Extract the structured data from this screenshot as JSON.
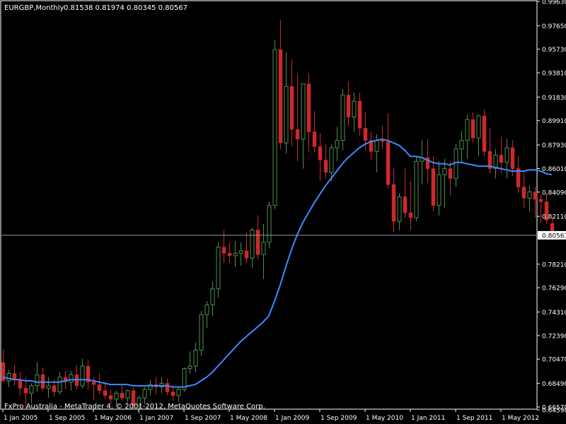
{
  "header": {
    "symbol": "EURGBP,Monthly",
    "ohlc": "0.81538 0.81974 0.80345 0.80567"
  },
  "footer": {
    "copyright": "FxPro Australia - MetaTrader 4, © 2001-2012, MetaQuotes Software Corp."
  },
  "colors": {
    "background": "#000000",
    "frame": "#ffffff",
    "bull": "#4f8f4f",
    "bear": "#cc2a2a",
    "ma_line": "#3a8cff",
    "price_line": "#8c9bb0",
    "price_label_bg": "#ffffff"
  },
  "chart_data": {
    "type": "candlestick",
    "timeframe": "Monthly",
    "current_price": 0.80567,
    "current_price_label": "0.80567",
    "ylim": [
      0.6645,
      0.9963
    ],
    "y_ticks": [
      {
        "value": 0.9963,
        "label": "0.99630"
      },
      {
        "value": 0.9765,
        "label": "0.97650"
      },
      {
        "value": 0.9573,
        "label": "0.95730"
      },
      {
        "value": 0.9381,
        "label": "0.93810"
      },
      {
        "value": 0.9183,
        "label": "0.91830"
      },
      {
        "value": 0.8991,
        "label": "0.89910"
      },
      {
        "value": 0.8793,
        "label": "0.87930"
      },
      {
        "value": 0.8601,
        "label": "0.86010"
      },
      {
        "value": 0.8409,
        "label": "0.84090"
      },
      {
        "value": 0.8211,
        "label": "0.82110"
      },
      {
        "value": 0.7821,
        "label": "0.78210"
      },
      {
        "value": 0.7629,
        "label": "0.76290"
      },
      {
        "value": 0.7431,
        "label": "0.74310"
      },
      {
        "value": 0.7239,
        "label": "0.72390"
      },
      {
        "value": 0.7047,
        "label": "0.70470"
      },
      {
        "value": 0.6849,
        "label": "0.68490"
      },
      {
        "value": 0.6657,
        "label": "0.66570"
      },
      {
        "value": 0.6459,
        "label": "0.64590"
      }
    ],
    "x_labels": [
      {
        "index": 0,
        "label": "1 Jan 2005"
      },
      {
        "index": 8,
        "label": "1 Sep 2005"
      },
      {
        "index": 16,
        "label": "1 May 2006"
      },
      {
        "index": 24,
        "label": "1 Jan 2007"
      },
      {
        "index": 32,
        "label": "1 Sep 2007"
      },
      {
        "index": 40,
        "label": "1 May 2008"
      },
      {
        "index": 48,
        "label": "1 Jan 2009"
      },
      {
        "index": 56,
        "label": "1 Sep 2009"
      },
      {
        "index": 64,
        "label": "1 May 2010"
      },
      {
        "index": 72,
        "label": "1 Jan 2011"
      },
      {
        "index": 80,
        "label": "1 Sep 2011"
      },
      {
        "index": 88,
        "label": "1 May 2012"
      }
    ],
    "candles": [
      {
        "month": "2005-01",
        "o": 0.702,
        "h": 0.713,
        "l": 0.686,
        "c": 0.687
      },
      {
        "month": "2005-02",
        "o": 0.687,
        "h": 0.696,
        "l": 0.682,
        "c": 0.693
      },
      {
        "month": "2005-03",
        "o": 0.693,
        "h": 0.7,
        "l": 0.683,
        "c": 0.688
      },
      {
        "month": "2005-04",
        "o": 0.688,
        "h": 0.694,
        "l": 0.675,
        "c": 0.681
      },
      {
        "month": "2005-05",
        "o": 0.681,
        "h": 0.69,
        "l": 0.663,
        "c": 0.677
      },
      {
        "month": "2005-06",
        "o": 0.677,
        "h": 0.685,
        "l": 0.669,
        "c": 0.683
      },
      {
        "month": "2005-07",
        "o": 0.683,
        "h": 0.702,
        "l": 0.678,
        "c": 0.692
      },
      {
        "month": "2005-08",
        "o": 0.692,
        "h": 0.698,
        "l": 0.678,
        "c": 0.681
      },
      {
        "month": "2005-09",
        "o": 0.681,
        "h": 0.69,
        "l": 0.673,
        "c": 0.683
      },
      {
        "month": "2005-10",
        "o": 0.683,
        "h": 0.688,
        "l": 0.674,
        "c": 0.678
      },
      {
        "month": "2005-11",
        "o": 0.678,
        "h": 0.694,
        "l": 0.676,
        "c": 0.69
      },
      {
        "month": "2005-12",
        "o": 0.69,
        "h": 0.695,
        "l": 0.68,
        "c": 0.686
      },
      {
        "month": "2006-01",
        "o": 0.686,
        "h": 0.695,
        "l": 0.679,
        "c": 0.692
      },
      {
        "month": "2006-02",
        "o": 0.692,
        "h": 0.7,
        "l": 0.68,
        "c": 0.683
      },
      {
        "month": "2006-03",
        "o": 0.683,
        "h": 0.705,
        "l": 0.681,
        "c": 0.699
      },
      {
        "month": "2006-04",
        "o": 0.699,
        "h": 0.704,
        "l": 0.68,
        "c": 0.686
      },
      {
        "month": "2006-05",
        "o": 0.686,
        "h": 0.69,
        "l": 0.671,
        "c": 0.684
      },
      {
        "month": "2006-06",
        "o": 0.684,
        "h": 0.693,
        "l": 0.676,
        "c": 0.679
      },
      {
        "month": "2006-07",
        "o": 0.679,
        "h": 0.686,
        "l": 0.672,
        "c": 0.675
      },
      {
        "month": "2006-08",
        "o": 0.675,
        "h": 0.68,
        "l": 0.668,
        "c": 0.672
      },
      {
        "month": "2006-09",
        "o": 0.672,
        "h": 0.679,
        "l": 0.667,
        "c": 0.677
      },
      {
        "month": "2006-10",
        "o": 0.677,
        "h": 0.683,
        "l": 0.671,
        "c": 0.673
      },
      {
        "month": "2006-11",
        "o": 0.673,
        "h": 0.68,
        "l": 0.669,
        "c": 0.679
      },
      {
        "month": "2006-12",
        "o": 0.679,
        "h": 0.682,
        "l": 0.664,
        "c": 0.667
      },
      {
        "month": "2007-01",
        "o": 0.667,
        "h": 0.675,
        "l": 0.66,
        "c": 0.673
      },
      {
        "month": "2007-02",
        "o": 0.673,
        "h": 0.682,
        "l": 0.668,
        "c": 0.68
      },
      {
        "month": "2007-03",
        "o": 0.68,
        "h": 0.688,
        "l": 0.675,
        "c": 0.684
      },
      {
        "month": "2007-04",
        "o": 0.684,
        "h": 0.69,
        "l": 0.676,
        "c": 0.682
      },
      {
        "month": "2007-05",
        "o": 0.682,
        "h": 0.69,
        "l": 0.677,
        "c": 0.685
      },
      {
        "month": "2007-06",
        "o": 0.685,
        "h": 0.689,
        "l": 0.675,
        "c": 0.678
      },
      {
        "month": "2007-07",
        "o": 0.678,
        "h": 0.683,
        "l": 0.671,
        "c": 0.675
      },
      {
        "month": "2007-08",
        "o": 0.675,
        "h": 0.682,
        "l": 0.67,
        "c": 0.68
      },
      {
        "month": "2007-09",
        "o": 0.68,
        "h": 0.698,
        "l": 0.678,
        "c": 0.697
      },
      {
        "month": "2007-10",
        "o": 0.697,
        "h": 0.711,
        "l": 0.693,
        "c": 0.699
      },
      {
        "month": "2007-11",
        "o": 0.699,
        "h": 0.718,
        "l": 0.694,
        "c": 0.712
      },
      {
        "month": "2007-12",
        "o": 0.712,
        "h": 0.744,
        "l": 0.707,
        "c": 0.741
      },
      {
        "month": "2008-01",
        "o": 0.741,
        "h": 0.752,
        "l": 0.73,
        "c": 0.749
      },
      {
        "month": "2008-02",
        "o": 0.749,
        "h": 0.768,
        "l": 0.74,
        "c": 0.762
      },
      {
        "month": "2008-03",
        "o": 0.762,
        "h": 0.8,
        "l": 0.755,
        "c": 0.796
      },
      {
        "month": "2008-04",
        "o": 0.796,
        "h": 0.81,
        "l": 0.783,
        "c": 0.791
      },
      {
        "month": "2008-05",
        "o": 0.791,
        "h": 0.8,
        "l": 0.783,
        "c": 0.789
      },
      {
        "month": "2008-06",
        "o": 0.789,
        "h": 0.801,
        "l": 0.78,
        "c": 0.791
      },
      {
        "month": "2008-07",
        "o": 0.791,
        "h": 0.8,
        "l": 0.781,
        "c": 0.793
      },
      {
        "month": "2008-08",
        "o": 0.793,
        "h": 0.808,
        "l": 0.783,
        "c": 0.787
      },
      {
        "month": "2008-09",
        "o": 0.787,
        "h": 0.812,
        "l": 0.779,
        "c": 0.81
      },
      {
        "month": "2008-10",
        "o": 0.81,
        "h": 0.822,
        "l": 0.786,
        "c": 0.79
      },
      {
        "month": "2008-11",
        "o": 0.79,
        "h": 0.815,
        "l": 0.77,
        "c": 0.8
      },
      {
        "month": "2008-12",
        "o": 0.8,
        "h": 0.833,
        "l": 0.795,
        "c": 0.83
      },
      {
        "month": "2009-01",
        "o": 0.83,
        "h": 0.965,
        "l": 0.827,
        "c": 0.957
      },
      {
        "month": "2009-02",
        "o": 0.957,
        "h": 0.981,
        "l": 0.876,
        "c": 0.881
      },
      {
        "month": "2009-03",
        "o": 0.881,
        "h": 0.955,
        "l": 0.872,
        "c": 0.927
      },
      {
        "month": "2009-04",
        "o": 0.927,
        "h": 0.949,
        "l": 0.878,
        "c": 0.892
      },
      {
        "month": "2009-05",
        "o": 0.892,
        "h": 0.937,
        "l": 0.866,
        "c": 0.884
      },
      {
        "month": "2009-06",
        "o": 0.884,
        "h": 0.928,
        "l": 0.86,
        "c": 0.929
      },
      {
        "month": "2009-07",
        "o": 0.929,
        "h": 0.938,
        "l": 0.874,
        "c": 0.89
      },
      {
        "month": "2009-08",
        "o": 0.89,
        "h": 0.907,
        "l": 0.873,
        "c": 0.878
      },
      {
        "month": "2009-09",
        "o": 0.878,
        "h": 0.889,
        "l": 0.85,
        "c": 0.867
      },
      {
        "month": "2009-10",
        "o": 0.867,
        "h": 0.88,
        "l": 0.852,
        "c": 0.857
      },
      {
        "month": "2009-11",
        "o": 0.857,
        "h": 0.88,
        "l": 0.85,
        "c": 0.877
      },
      {
        "month": "2009-12",
        "o": 0.877,
        "h": 0.894,
        "l": 0.866,
        "c": 0.883
      },
      {
        "month": "2010-01",
        "o": 0.883,
        "h": 0.925,
        "l": 0.875,
        "c": 0.92
      },
      {
        "month": "2010-02",
        "o": 0.92,
        "h": 0.931,
        "l": 0.895,
        "c": 0.902
      },
      {
        "month": "2010-03",
        "o": 0.902,
        "h": 0.922,
        "l": 0.89,
        "c": 0.915
      },
      {
        "month": "2010-04",
        "o": 0.915,
        "h": 0.922,
        "l": 0.887,
        "c": 0.893
      },
      {
        "month": "2010-05",
        "o": 0.893,
        "h": 0.906,
        "l": 0.875,
        "c": 0.883
      },
      {
        "month": "2010-06",
        "o": 0.883,
        "h": 0.89,
        "l": 0.867,
        "c": 0.874
      },
      {
        "month": "2010-07",
        "o": 0.874,
        "h": 0.888,
        "l": 0.857,
        "c": 0.883
      },
      {
        "month": "2010-08",
        "o": 0.883,
        "h": 0.895,
        "l": 0.876,
        "c": 0.882
      },
      {
        "month": "2010-09",
        "o": 0.882,
        "h": 0.905,
        "l": 0.844,
        "c": 0.847
      },
      {
        "month": "2010-10",
        "o": 0.847,
        "h": 0.86,
        "l": 0.808,
        "c": 0.817
      },
      {
        "month": "2010-11",
        "o": 0.817,
        "h": 0.84,
        "l": 0.81,
        "c": 0.837
      },
      {
        "month": "2010-12",
        "o": 0.837,
        "h": 0.86,
        "l": 0.82,
        "c": 0.824
      },
      {
        "month": "2011-01",
        "o": 0.824,
        "h": 0.85,
        "l": 0.81,
        "c": 0.82
      },
      {
        "month": "2011-02",
        "o": 0.82,
        "h": 0.87,
        "l": 0.817,
        "c": 0.866
      },
      {
        "month": "2011-03",
        "o": 0.866,
        "h": 0.883,
        "l": 0.847,
        "c": 0.869
      },
      {
        "month": "2011-04",
        "o": 0.869,
        "h": 0.884,
        "l": 0.848,
        "c": 0.86
      },
      {
        "month": "2011-05",
        "o": 0.86,
        "h": 0.87,
        "l": 0.825,
        "c": 0.83
      },
      {
        "month": "2011-06",
        "o": 0.83,
        "h": 0.866,
        "l": 0.822,
        "c": 0.855
      },
      {
        "month": "2011-07",
        "o": 0.855,
        "h": 0.868,
        "l": 0.828,
        "c": 0.86
      },
      {
        "month": "2011-08",
        "o": 0.86,
        "h": 0.866,
        "l": 0.838,
        "c": 0.852
      },
      {
        "month": "2011-09",
        "o": 0.852,
        "h": 0.88,
        "l": 0.845,
        "c": 0.876
      },
      {
        "month": "2011-10",
        "o": 0.876,
        "h": 0.891,
        "l": 0.865,
        "c": 0.883
      },
      {
        "month": "2011-11",
        "o": 0.883,
        "h": 0.904,
        "l": 0.868,
        "c": 0.9
      },
      {
        "month": "2011-12",
        "o": 0.9,
        "h": 0.906,
        "l": 0.881,
        "c": 0.885
      },
      {
        "month": "2012-01",
        "o": 0.885,
        "h": 0.904,
        "l": 0.87,
        "c": 0.903
      },
      {
        "month": "2012-02",
        "o": 0.903,
        "h": 0.908,
        "l": 0.87,
        "c": 0.874
      },
      {
        "month": "2012-03",
        "o": 0.874,
        "h": 0.893,
        "l": 0.856,
        "c": 0.86
      },
      {
        "month": "2012-04",
        "o": 0.86,
        "h": 0.876,
        "l": 0.852,
        "c": 0.871
      },
      {
        "month": "2012-05",
        "o": 0.871,
        "h": 0.886,
        "l": 0.856,
        "c": 0.865
      },
      {
        "month": "2012-06",
        "o": 0.865,
        "h": 0.884,
        "l": 0.852,
        "c": 0.877
      },
      {
        "month": "2012-07",
        "o": 0.877,
        "h": 0.883,
        "l": 0.854,
        "c": 0.86
      },
      {
        "month": "2012-08",
        "o": 0.86,
        "h": 0.87,
        "l": 0.84,
        "c": 0.845
      },
      {
        "month": "2012-09",
        "o": 0.845,
        "h": 0.858,
        "l": 0.828,
        "c": 0.836
      },
      {
        "month": "2012-10",
        "o": 0.836,
        "h": 0.846,
        "l": 0.825,
        "c": 0.841
      },
      {
        "month": "2012-11",
        "o": 0.841,
        "h": 0.845,
        "l": 0.82,
        "c": 0.835
      },
      {
        "month": "2012-12",
        "o": 0.835,
        "h": 0.839,
        "l": 0.816,
        "c": 0.833
      },
      {
        "month": "2013-01",
        "o": 0.833,
        "h": 0.84,
        "l": 0.815,
        "c": 0.818
      },
      {
        "month": "2013-02",
        "o": 0.81538,
        "h": 0.81974,
        "l": 0.80345,
        "c": 0.80567
      }
    ],
    "moving_average": [
      0.69,
      0.689,
      0.688,
      0.688,
      0.687,
      0.687,
      0.686,
      0.686,
      0.686,
      0.686,
      0.686,
      0.687,
      0.688,
      0.688,
      0.688,
      0.688,
      0.687,
      0.686,
      0.685,
      0.684,
      0.684,
      0.684,
      0.684,
      0.683,
      0.683,
      0.683,
      0.683,
      0.683,
      0.683,
      0.683,
      0.682,
      0.682,
      0.682,
      0.683,
      0.684,
      0.687,
      0.69,
      0.694,
      0.699,
      0.704,
      0.709,
      0.714,
      0.719,
      0.723,
      0.727,
      0.731,
      0.735,
      0.74,
      0.752,
      0.765,
      0.78,
      0.794,
      0.806,
      0.816,
      0.824,
      0.832,
      0.839,
      0.846,
      0.852,
      0.858,
      0.864,
      0.869,
      0.873,
      0.877,
      0.88,
      0.882,
      0.883,
      0.884,
      0.883,
      0.881,
      0.879,
      0.875,
      0.87,
      0.87,
      0.869,
      0.867,
      0.865,
      0.864,
      0.864,
      0.863,
      0.865,
      0.865,
      0.864,
      0.863,
      0.862,
      0.862,
      0.862,
      0.861,
      0.86,
      0.859,
      0.858,
      0.858,
      0.858,
      0.859,
      0.859,
      0.858,
      0.856,
      0.855
    ]
  }
}
